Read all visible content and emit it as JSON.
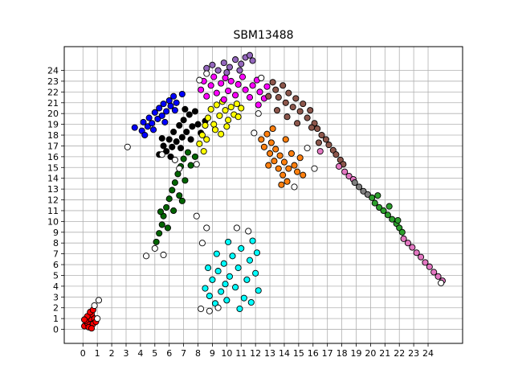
{
  "chart_data": {
    "type": "scatter",
    "title": "SBM13488",
    "xlabel": "",
    "ylabel": "",
    "xlim": [
      -1.3,
      26.4
    ],
    "ylim": [
      -1.3,
      26.2
    ],
    "x_ticks": [
      0,
      1,
      2,
      3,
      4,
      5,
      6,
      7,
      8,
      9,
      10,
      11,
      12,
      13,
      14,
      15,
      16,
      17,
      18,
      19,
      20,
      21,
      22,
      23,
      24
    ],
    "y_ticks": [
      0,
      1,
      2,
      3,
      4,
      5,
      6,
      7,
      8,
      9,
      10,
      11,
      12,
      13,
      14,
      15,
      16,
      17,
      18,
      19,
      20,
      21,
      22,
      23,
      24
    ],
    "grid": true,
    "legend": "none",
    "marker_edge_color": "#000000",
    "series": [
      {
        "color": "#ff0000",
        "points": [
          [
            0.1,
            0.3
          ],
          [
            0.3,
            0.6
          ],
          [
            0.5,
            1.0
          ],
          [
            0.6,
            1.4
          ],
          [
            0.2,
            0.8
          ],
          [
            0.4,
            0.2
          ],
          [
            0.7,
            0.5
          ],
          [
            0.8,
            1.0
          ],
          [
            0.3,
            1.2
          ],
          [
            0.6,
            0.1
          ],
          [
            0.1,
            0.9
          ],
          [
            0.5,
            1.6
          ],
          [
            0.7,
            1.8
          ],
          [
            0.9,
            0.7
          ]
        ]
      },
      {
        "color": "#0000ff",
        "points": [
          [
            3.6,
            18.7
          ],
          [
            4.1,
            18.4
          ],
          [
            4.2,
            19.2
          ],
          [
            4.5,
            18.8
          ],
          [
            4.6,
            19.6
          ],
          [
            4.8,
            19.1
          ],
          [
            5.0,
            20.1
          ],
          [
            5.2,
            19.5
          ],
          [
            5.3,
            20.5
          ],
          [
            5.5,
            19.8
          ],
          [
            5.6,
            20.9
          ],
          [
            5.8,
            20.2
          ],
          [
            6.0,
            21.2
          ],
          [
            6.1,
            20.7
          ],
          [
            6.3,
            21.6
          ],
          [
            6.5,
            21.0
          ],
          [
            4.3,
            18.0
          ],
          [
            4.9,
            18.5
          ],
          [
            5.7,
            19.2
          ],
          [
            6.4,
            20.3
          ],
          [
            6.9,
            21.8
          ]
        ]
      },
      {
        "color": "#000000",
        "points": [
          [
            5.3,
            16.2
          ],
          [
            5.6,
            17.0
          ],
          [
            5.8,
            16.5
          ],
          [
            6.0,
            17.6
          ],
          [
            6.2,
            16.9
          ],
          [
            6.3,
            18.3
          ],
          [
            6.5,
            17.4
          ],
          [
            6.7,
            18.9
          ],
          [
            6.9,
            17.8
          ],
          [
            7.0,
            19.4
          ],
          [
            7.2,
            18.3
          ],
          [
            7.4,
            19.9
          ],
          [
            7.6,
            18.8
          ],
          [
            7.8,
            20.2
          ],
          [
            8.0,
            19.0
          ],
          [
            6.1,
            16.0
          ],
          [
            6.8,
            16.8
          ],
          [
            7.5,
            17.6
          ],
          [
            8.2,
            18.2
          ],
          [
            8.5,
            19.3
          ],
          [
            5.5,
            17.7
          ],
          [
            7.1,
            20.4
          ]
        ]
      },
      {
        "color": "#ffff00",
        "points": [
          [
            8.1,
            17.2
          ],
          [
            8.3,
            18.0
          ],
          [
            8.5,
            18.9
          ],
          [
            8.7,
            19.6
          ],
          [
            8.9,
            20.4
          ],
          [
            9.1,
            19.0
          ],
          [
            9.3,
            20.8
          ],
          [
            9.5,
            19.8
          ],
          [
            9.7,
            21.1
          ],
          [
            9.9,
            20.3
          ],
          [
            10.1,
            19.4
          ],
          [
            10.3,
            20.6
          ],
          [
            10.5,
            19.9
          ],
          [
            10.7,
            20.9
          ],
          [
            8.6,
            17.6
          ],
          [
            9.2,
            18.5
          ],
          [
            10.0,
            18.8
          ],
          [
            10.8,
            19.7
          ],
          [
            11.0,
            20.5
          ],
          [
            8.4,
            16.5
          ],
          [
            9.6,
            18.1
          ]
        ]
      },
      {
        "color": "#ff00ff",
        "points": [
          [
            8.2,
            22.2
          ],
          [
            8.4,
            23.0
          ],
          [
            8.6,
            21.6
          ],
          [
            8.9,
            22.6
          ],
          [
            9.1,
            23.4
          ],
          [
            9.3,
            21.9
          ],
          [
            9.6,
            22.8
          ],
          [
            9.9,
            23.3
          ],
          [
            10.1,
            22.1
          ],
          [
            10.3,
            23.0
          ],
          [
            10.6,
            21.7
          ],
          [
            10.8,
            22.7
          ],
          [
            11.1,
            23.4
          ],
          [
            11.3,
            22.2
          ],
          [
            11.6,
            21.5
          ],
          [
            11.8,
            22.6
          ],
          [
            12.1,
            23.1
          ],
          [
            12.3,
            22.0
          ],
          [
            12.6,
            21.4
          ],
          [
            12.8,
            22.5
          ],
          [
            12.2,
            20.8
          ],
          [
            9.8,
            21.3
          ]
        ]
      },
      {
        "color": "#9467bd",
        "points": [
          [
            8.6,
            24.2
          ],
          [
            9.0,
            24.5
          ],
          [
            9.4,
            24.0
          ],
          [
            9.8,
            24.7
          ],
          [
            10.2,
            24.3
          ],
          [
            10.6,
            25.0
          ],
          [
            11.0,
            24.6
          ],
          [
            11.3,
            25.2
          ],
          [
            11.6,
            25.4
          ],
          [
            10.0,
            23.8
          ],
          [
            10.9,
            24.0
          ],
          [
            11.8,
            24.9
          ]
        ]
      },
      {
        "color": "#8c564b",
        "points": [
          [
            13.2,
            22.9
          ],
          [
            13.4,
            22.2
          ],
          [
            13.6,
            21.5
          ],
          [
            13.9,
            22.6
          ],
          [
            14.1,
            21.0
          ],
          [
            14.3,
            21.9
          ],
          [
            14.6,
            20.6
          ],
          [
            14.8,
            21.4
          ],
          [
            15.1,
            20.2
          ],
          [
            15.3,
            20.9
          ],
          [
            15.6,
            19.6
          ],
          [
            15.8,
            20.3
          ],
          [
            16.1,
            19.1
          ],
          [
            16.3,
            18.6
          ],
          [
            16.6,
            18.0
          ],
          [
            16.9,
            17.6
          ],
          [
            17.1,
            17.1
          ],
          [
            17.4,
            16.6
          ],
          [
            17.6,
            16.2
          ],
          [
            17.9,
            15.7
          ],
          [
            18.1,
            15.3
          ],
          [
            13.5,
            20.3
          ],
          [
            14.2,
            19.7
          ],
          [
            12.9,
            21.6
          ],
          [
            14.9,
            19.1
          ],
          [
            15.9,
            18.7
          ],
          [
            16.4,
            17.3
          ]
        ]
      },
      {
        "color": "#ff7f0e",
        "points": [
          [
            12.4,
            17.6
          ],
          [
            12.6,
            16.9
          ],
          [
            12.8,
            18.1
          ],
          [
            13.0,
            16.3
          ],
          [
            13.1,
            17.3
          ],
          [
            13.3,
            15.6
          ],
          [
            13.4,
            16.7
          ],
          [
            13.6,
            14.9
          ],
          [
            13.7,
            16.1
          ],
          [
            13.9,
            14.3
          ],
          [
            14.0,
            15.5
          ],
          [
            14.2,
            13.7
          ],
          [
            14.3,
            14.9
          ],
          [
            14.5,
            16.3
          ],
          [
            14.7,
            15.2
          ],
          [
            14.9,
            14.6
          ],
          [
            15.1,
            15.9
          ],
          [
            13.2,
            18.6
          ],
          [
            14.1,
            17.6
          ],
          [
            12.9,
            15.2
          ],
          [
            13.8,
            13.4
          ],
          [
            15.3,
            14.3
          ]
        ]
      },
      {
        "color": "#e377c2",
        "points": [
          [
            16.5,
            16.5
          ],
          [
            17.8,
            15.1
          ],
          [
            18.2,
            14.6
          ],
          [
            18.5,
            14.2
          ],
          [
            18.8,
            13.9
          ],
          [
            22.3,
            8.4
          ],
          [
            22.6,
            8.0
          ],
          [
            22.9,
            7.6
          ],
          [
            23.2,
            7.1
          ],
          [
            23.5,
            6.7
          ],
          [
            23.8,
            6.2
          ],
          [
            24.1,
            5.8
          ],
          [
            24.4,
            5.3
          ],
          [
            24.7,
            4.9
          ],
          [
            25.0,
            4.5
          ]
        ]
      },
      {
        "color": "#7f7f7f",
        "points": [
          [
            18.9,
            13.6
          ],
          [
            19.2,
            13.2
          ],
          [
            19.5,
            12.8
          ],
          [
            19.8,
            12.5
          ]
        ]
      },
      {
        "color": "#2ca02c",
        "points": [
          [
            20.1,
            12.2
          ],
          [
            20.3,
            11.7
          ],
          [
            20.6,
            11.3
          ],
          [
            20.9,
            11.0
          ],
          [
            21.2,
            10.6
          ],
          [
            21.5,
            10.2
          ],
          [
            21.8,
            9.8
          ],
          [
            22.0,
            9.4
          ],
          [
            22.2,
            9.0
          ],
          [
            20.5,
            12.4
          ],
          [
            21.3,
            11.4
          ],
          [
            21.9,
            10.1
          ]
        ]
      },
      {
        "color": "#006400",
        "points": [
          [
            5.1,
            8.1
          ],
          [
            5.3,
            8.9
          ],
          [
            5.5,
            9.7
          ],
          [
            5.6,
            10.5
          ],
          [
            5.8,
            11.3
          ],
          [
            6.0,
            12.1
          ],
          [
            6.2,
            12.9
          ],
          [
            6.4,
            13.6
          ],
          [
            6.6,
            14.4
          ],
          [
            6.8,
            15.1
          ],
          [
            7.0,
            15.8
          ],
          [
            7.3,
            16.4
          ],
          [
            5.9,
            9.4
          ],
          [
            6.3,
            11.0
          ],
          [
            6.7,
            12.4
          ],
          [
            7.1,
            13.8
          ],
          [
            7.5,
            15.2
          ],
          [
            7.8,
            16.0
          ],
          [
            5.4,
            10.9
          ],
          [
            6.9,
            11.9
          ]
        ]
      },
      {
        "color": "#00ffff",
        "points": [
          [
            8.5,
            3.8
          ],
          [
            8.8,
            3.1
          ],
          [
            9.0,
            4.6
          ],
          [
            9.2,
            2.4
          ],
          [
            9.4,
            5.4
          ],
          [
            9.6,
            3.5
          ],
          [
            9.8,
            6.1
          ],
          [
            10.0,
            2.7
          ],
          [
            10.2,
            4.9
          ],
          [
            10.4,
            6.8
          ],
          [
            10.6,
            3.9
          ],
          [
            10.8,
            5.7
          ],
          [
            11.0,
            7.5
          ],
          [
            11.2,
            2.9
          ],
          [
            11.4,
            4.6
          ],
          [
            11.6,
            6.4
          ],
          [
            11.8,
            8.2
          ],
          [
            12.0,
            5.2
          ],
          [
            12.1,
            7.1
          ],
          [
            9.3,
            7.0
          ],
          [
            10.1,
            8.1
          ],
          [
            10.9,
            1.9
          ],
          [
            11.7,
            2.5
          ],
          [
            12.2,
            3.6
          ],
          [
            8.7,
            5.7
          ],
          [
            9.9,
            4.2
          ]
        ]
      },
      {
        "color": "#ffffff",
        "points": [
          [
            3.1,
            16.9
          ],
          [
            4.4,
            6.8
          ],
          [
            5.6,
            6.9
          ],
          [
            5.0,
            7.5
          ],
          [
            8.2,
            1.9
          ],
          [
            8.8,
            1.7
          ],
          [
            9.4,
            2.0
          ],
          [
            1.1,
            2.7
          ],
          [
            1.0,
            1.0
          ],
          [
            0.8,
            2.2
          ],
          [
            7.9,
            10.5
          ],
          [
            8.6,
            9.4
          ],
          [
            8.3,
            8.0
          ],
          [
            12.2,
            20.0
          ],
          [
            11.9,
            18.2
          ],
          [
            15.6,
            16.8
          ],
          [
            16.1,
            14.9
          ],
          [
            14.7,
            13.2
          ],
          [
            8.6,
            23.7
          ],
          [
            8.1,
            23.1
          ],
          [
            12.4,
            23.3
          ],
          [
            24.9,
            4.3
          ],
          [
            6.7,
            14.9
          ],
          [
            7.9,
            15.3
          ],
          [
            6.4,
            15.7
          ],
          [
            5.5,
            16.2
          ],
          [
            10.7,
            9.4
          ],
          [
            11.5,
            9.1
          ]
        ]
      }
    ]
  }
}
